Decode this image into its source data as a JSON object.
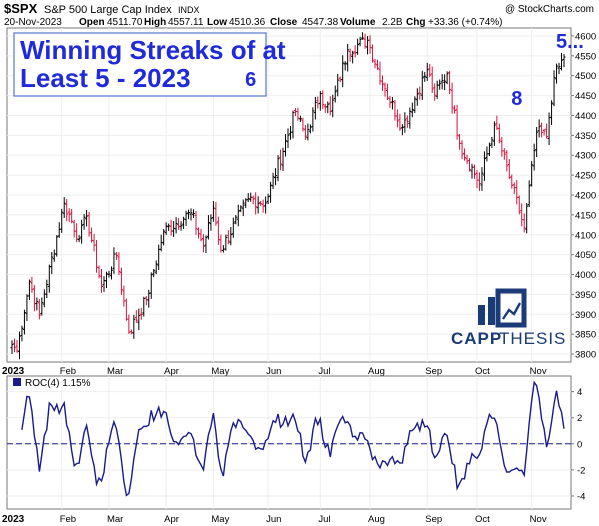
{
  "header": {
    "symbol": "$SPX",
    "name": "S&P 500 Large Cap Index",
    "exchange": "INDX",
    "watermark": "@ StockCharts.com",
    "date": "20-Nov-2023",
    "open_label": "Open",
    "open": "4511.70",
    "high_label": "High",
    "high": "4557.11",
    "low_label": "Low",
    "low": "4510.36",
    "close_label": "Close",
    "close": "4547.38",
    "volume_label": "Volume",
    "volume": "2.2B",
    "change_label": "Chg",
    "change": "+33.36 (+0.74%)"
  },
  "callout": {
    "line1": "Winning Streaks of at",
    "line2": "Least 5 - 2023"
  },
  "streak_labels": [
    {
      "text": "6",
      "date_index": 96
    },
    {
      "text": "8",
      "date_index": 203
    },
    {
      "text": "5...",
      "date_index": 222
    }
  ],
  "logo": {
    "word1": "CAPP",
    "word2": "THESIS"
  },
  "roc_panel": {
    "label": "ROC(4) 1.15%"
  },
  "year_label": "2023",
  "year_label_bottom": "2023",
  "colors": {
    "up": "#000000",
    "down": "#d4143c",
    "roc_line": "#1a1a8c",
    "callout_border": "#5577cc",
    "streak_text": "#1f2bd8",
    "logo": "#1b3a78"
  },
  "chart_data": [
    {
      "type": "ohlc",
      "title": "$SPX S&P 500 Large Cap Index INDX",
      "x_start": "2023-01-03",
      "x_end": "2023-11-20",
      "x_ticks": [
        "Feb",
        "Mar",
        "Apr",
        "May",
        "Jun",
        "Jul",
        "Aug",
        "Sep",
        "Oct",
        "Nov"
      ],
      "y_ticks": [
        3800,
        3850,
        3900,
        3950,
        4000,
        4050,
        4100,
        4150,
        4200,
        4250,
        4300,
        4350,
        4400,
        4450,
        4500,
        4550,
        4600
      ],
      "ylim": [
        3780,
        4620
      ],
      "anchors": [
        {
          "date": "2023-01-03",
          "close": 3824
        },
        {
          "date": "2023-01-05",
          "close": 3808
        },
        {
          "date": "2023-01-12",
          "close": 3983
        },
        {
          "date": "2023-01-19",
          "close": 3898
        },
        {
          "date": "2023-02-02",
          "close": 4179
        },
        {
          "date": "2023-02-10",
          "close": 4090
        },
        {
          "date": "2023-02-15",
          "close": 4147
        },
        {
          "date": "2023-02-24",
          "close": 3970
        },
        {
          "date": "2023-03-06",
          "close": 4048
        },
        {
          "date": "2023-03-13",
          "close": 3855
        },
        {
          "date": "2023-03-22",
          "close": 3937
        },
        {
          "date": "2023-03-31",
          "close": 4109
        },
        {
          "date": "2023-04-18",
          "close": 4155
        },
        {
          "date": "2023-04-25",
          "close": 4071
        },
        {
          "date": "2023-05-01",
          "close": 4167
        },
        {
          "date": "2023-05-04",
          "close": 4061
        },
        {
          "date": "2023-05-19",
          "close": 4191
        },
        {
          "date": "2023-05-31",
          "close": 4180
        },
        {
          "date": "2023-06-16",
          "close": 4410
        },
        {
          "date": "2023-06-23",
          "close": 4348
        },
        {
          "date": "2023-07-03",
          "close": 4455
        },
        {
          "date": "2023-07-10",
          "close": 4410
        },
        {
          "date": "2023-07-19",
          "close": 4565
        },
        {
          "date": "2023-07-31",
          "close": 4589
        },
        {
          "date": "2023-08-09",
          "close": 4467
        },
        {
          "date": "2023-08-18",
          "close": 4370
        },
        {
          "date": "2023-09-01",
          "close": 4515
        },
        {
          "date": "2023-09-07",
          "close": 4451
        },
        {
          "date": "2023-09-14",
          "close": 4505
        },
        {
          "date": "2023-09-21",
          "close": 4330
        },
        {
          "date": "2023-10-03",
          "close": 4229
        },
        {
          "date": "2023-10-11",
          "close": 4376
        },
        {
          "date": "2023-10-20",
          "close": 4224
        },
        {
          "date": "2023-10-27",
          "close": 4117
        },
        {
          "date": "2023-11-03",
          "close": 4358
        },
        {
          "date": "2023-11-09",
          "close": 4347
        },
        {
          "date": "2023-11-14",
          "close": 4495
        },
        {
          "date": "2023-11-20",
          "close": 4547
        }
      ]
    },
    {
      "type": "line",
      "title": "ROC(4) 1.15%",
      "y_ticks": [
        -4,
        -2,
        0,
        2,
        4
      ],
      "ylim": [
        -5,
        5.2
      ],
      "series": [
        {
          "name": "ROC(4)"
        }
      ]
    }
  ]
}
